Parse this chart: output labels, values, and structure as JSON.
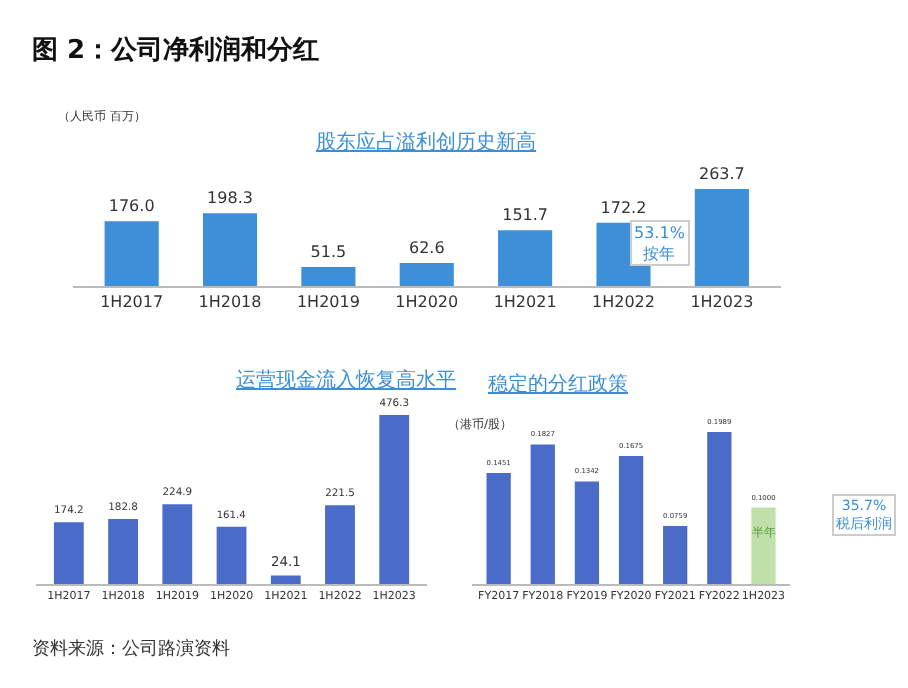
{
  "chart_data": [
    {
      "type": "bar",
      "title": "股东应占溢利创历史新高",
      "ylabel": "（人民币 百万）",
      "categories": [
        "1H2017",
        "1H2018",
        "1H2019",
        "1H2020",
        "1H2021",
        "1H2022",
        "1H2023"
      ],
      "values": [
        176.0,
        198.3,
        51.5,
        62.6,
        151.7,
        172.2,
        263.7
      ],
      "color": "#3d8fd8",
      "value_labels": [
        "176.0",
        "198.3",
        "51.5",
        "62.6",
        "151.7",
        "172.2",
        "263.7"
      ],
      "tick_labels": "x",
      "annotations": [
        "图 2：公司净利润和分红",
        "53.1%\n按年",
        "资料来源：公司路演资料"
      ]
    },
    {
      "type": "bar",
      "title": "运营现金流入恢复高水平",
      "categories": [
        "1H2017",
        "1H2018",
        "1H2019",
        "1H2020",
        "1H2021",
        "1H2022",
        "1H2023"
      ],
      "values": [
        174.2,
        182.8,
        224.9,
        161.4,
        24.1,
        221.5,
        476.3
      ],
      "color": "#4a6cc8",
      "value_labels": [
        "174.2",
        "182.8",
        "224.9",
        "161.4",
        "24.1",
        "221.5",
        "476.3"
      ],
      "tick_labels": "x"
    },
    {
      "type": "bar",
      "title": "稳定的分红政策",
      "ylabel": "（港币/股）",
      "categories": [
        "FY2017",
        "FY2018",
        "FY2019",
        "FY2020",
        "FY2021",
        "FY2022",
        "1H2023"
      ],
      "values": [
        0.1451,
        0.1827,
        0.1342,
        0.1675,
        0.0759,
        0.1989,
        0.1
      ],
      "colors": [
        "#4a6cc8",
        "#4a6cc8",
        "#4a6cc8",
        "#4a6cc8",
        "#4a6cc8",
        "#4a6cc8",
        "#bfe0a8"
      ],
      "value_labels": [
        "0.1451",
        "0.1827",
        "0.1342",
        "0.1675",
        "0.0759",
        "0.1989",
        "0.1000"
      ],
      "tick_labels": "x",
      "annotations": [
        "半年",
        "35.7%\n税后利润"
      ]
    }
  ]
}
